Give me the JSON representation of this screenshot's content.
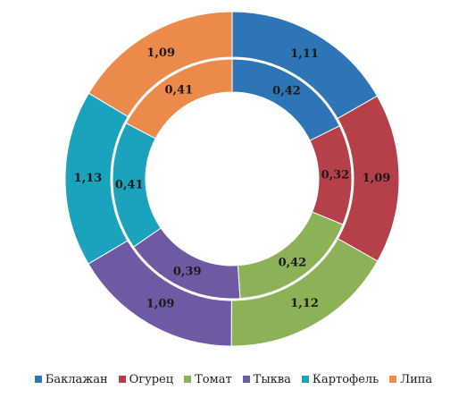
{
  "chart_data": {
    "type": "donut",
    "title": "",
    "legend_position": "bottom",
    "categories": [
      "Баклажан",
      "Огурец",
      "Томат",
      "Тыква",
      "Картофель",
      "Липа"
    ],
    "colors": [
      "#2e75b6",
      "#b5404a",
      "#8db156",
      "#6f59a3",
      "#1ba3bd",
      "#ec8a4c"
    ],
    "series": [
      {
        "ring": "outer",
        "values": [
          1.11,
          1.09,
          1.12,
          1.09,
          1.13,
          1.09
        ],
        "labels": [
          "1,11",
          "1,09",
          "1,12",
          "1,09",
          "1,13",
          "1,09"
        ]
      },
      {
        "ring": "inner",
        "values": [
          0.42,
          0.32,
          0.42,
          0.39,
          0.41,
          0.41
        ],
        "labels": [
          "0,42",
          "0,32",
          "0,42",
          "0,39",
          "0,41",
          "0,41"
        ]
      }
    ]
  }
}
